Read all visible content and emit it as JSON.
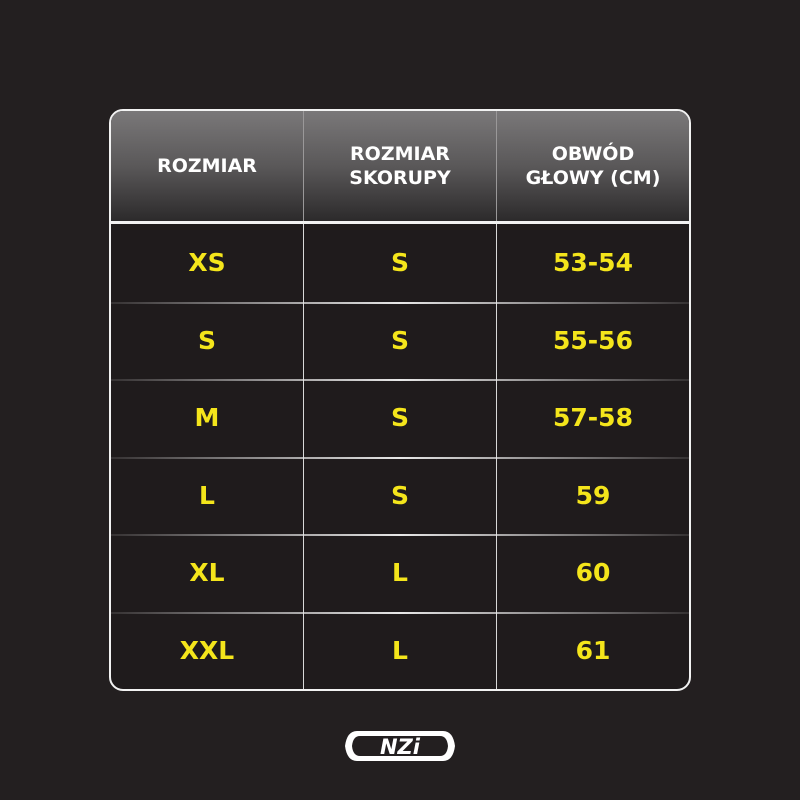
{
  "table": {
    "headers": [
      "ROZMIAR",
      "ROZMIAR\nSKORUPY",
      "OBWÓD\nGŁOWY (CM)"
    ],
    "rows": [
      [
        "XS",
        "S",
        "53-54"
      ],
      [
        "S",
        "S",
        "55-56"
      ],
      [
        "M",
        "S",
        "57-58"
      ],
      [
        "L",
        "S",
        "59"
      ],
      [
        "XL",
        "L",
        "60"
      ],
      [
        "XXL",
        "L",
        "61"
      ]
    ]
  },
  "logo": {
    "text": "NZI"
  },
  "colors": {
    "background": "#231f20",
    "value_text": "#f4e51b",
    "header_text": "#ffffff"
  }
}
